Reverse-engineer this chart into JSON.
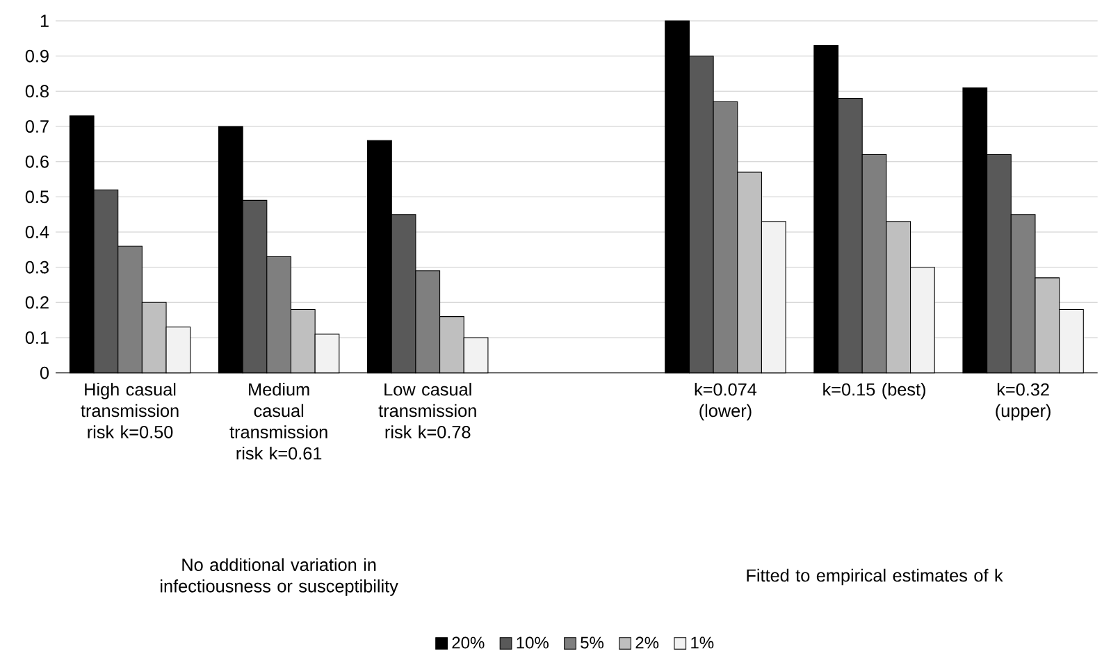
{
  "chart_data": {
    "type": "bar",
    "categories": [
      "High casual transmission risk k=0.50",
      "Medium casual transmission risk k=0.61",
      "Low casual transmission risk k=0.78",
      null,
      "k=0.074 (lower)",
      "k=0.15 (best)",
      "k=0.32 (upper)"
    ],
    "series": [
      {
        "name": "20%",
        "color": "#000000",
        "values": [
          0.73,
          0.7,
          0.66,
          null,
          1.0,
          0.93,
          0.81
        ]
      },
      {
        "name": "10%",
        "color": "#595959",
        "values": [
          0.52,
          0.49,
          0.45,
          null,
          0.9,
          0.78,
          0.62
        ]
      },
      {
        "name": "5%",
        "color": "#7f7f7f",
        "values": [
          0.36,
          0.33,
          0.29,
          null,
          0.77,
          0.62,
          0.45
        ]
      },
      {
        "name": "2%",
        "color": "#bfbfbf",
        "values": [
          0.2,
          0.18,
          0.16,
          null,
          0.57,
          0.43,
          0.27
        ]
      },
      {
        "name": "1%",
        "color": "#f2f2f2",
        "values": [
          0.13,
          0.11,
          0.1,
          null,
          0.43,
          0.3,
          0.18
        ]
      }
    ],
    "ylim": [
      0,
      1
    ],
    "yticks": [
      0,
      0.1,
      0.2,
      0.3,
      0.4,
      0.5,
      0.6,
      0.7,
      0.8,
      0.9,
      1
    ],
    "grid": "y",
    "legend": "bottom",
    "annotations": [
      "No additional variation in infectiousness or susceptibility",
      "Fitted to empirical estimates of k"
    ]
  }
}
